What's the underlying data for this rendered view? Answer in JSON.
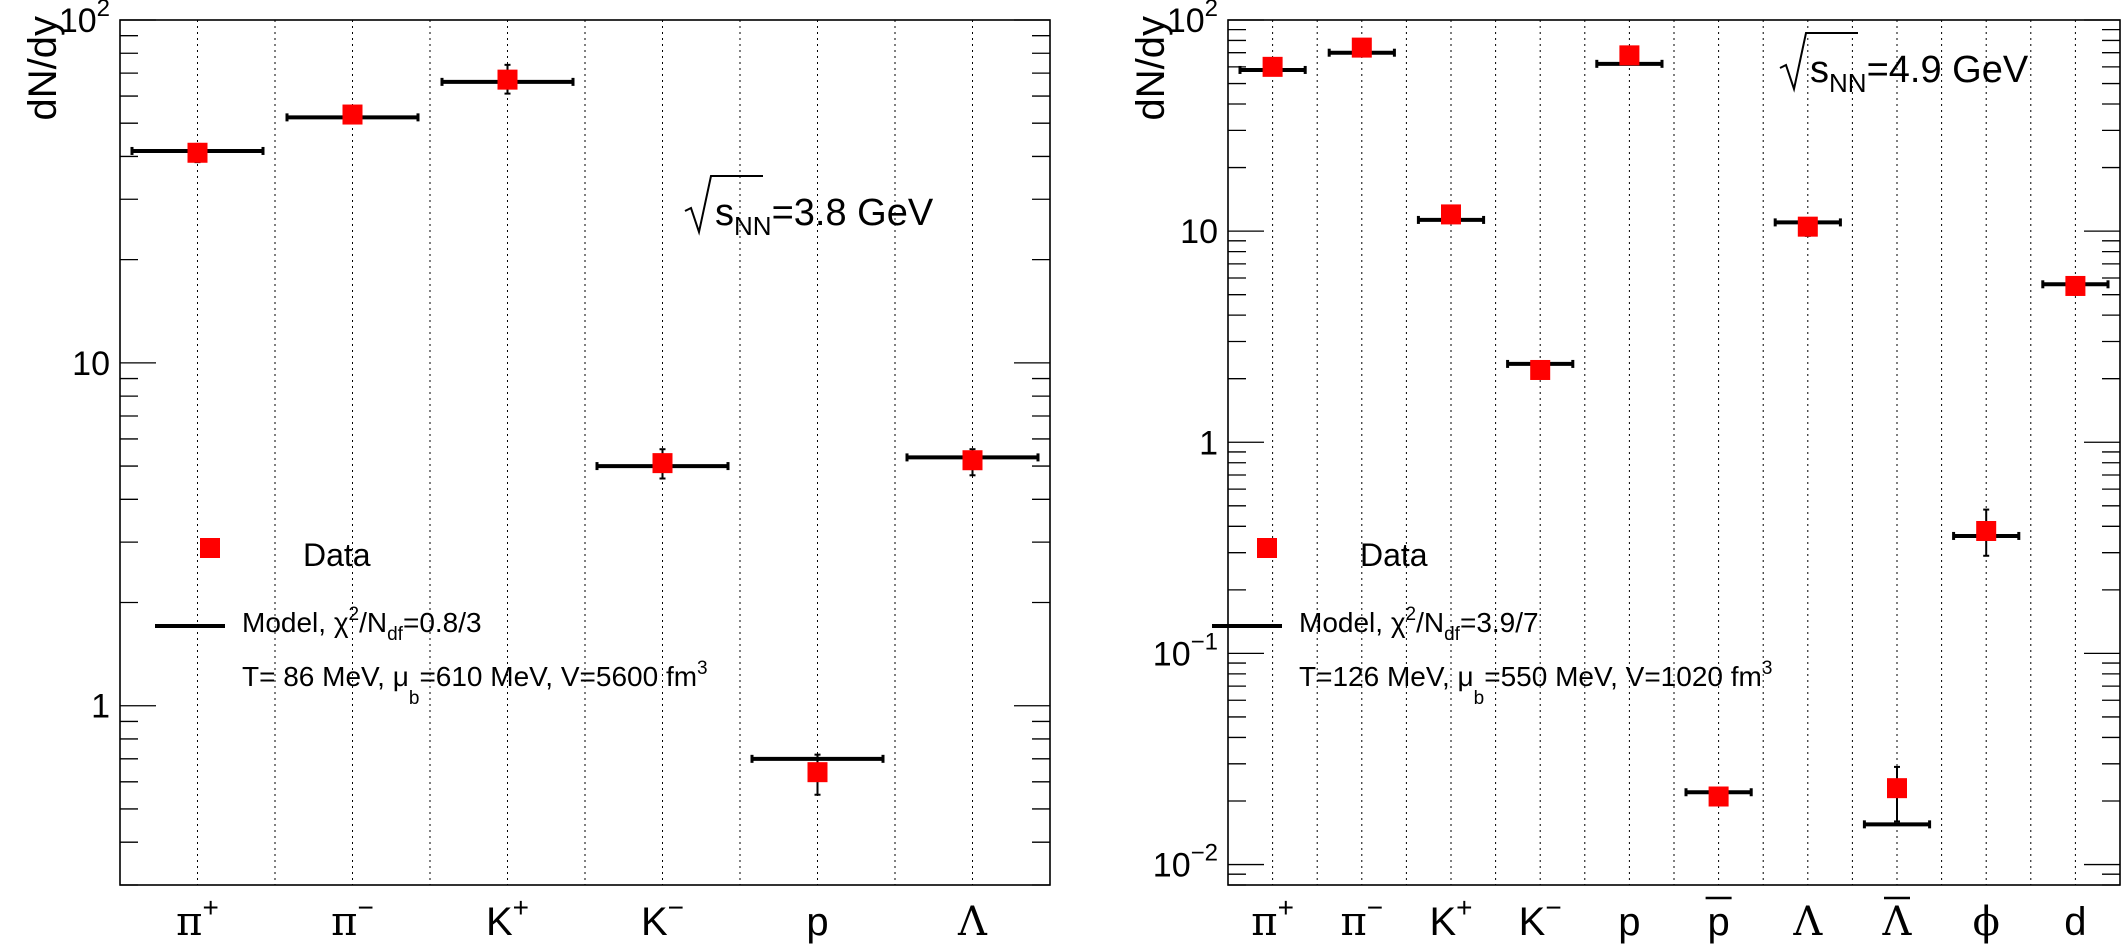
{
  "chart_data": [
    {
      "type": "scatter",
      "scale": "log",
      "ylabel": "dN/dy",
      "ylim": [
        0.3,
        100
      ],
      "y_ticks": [
        {
          "value": 1,
          "label": "1",
          "exp": ""
        },
        {
          "value": 10,
          "label": "10",
          "exp": ""
        },
        {
          "value": 100,
          "label": "10",
          "exp": "2"
        }
      ],
      "categories": [
        {
          "base": "π",
          "sup": "+",
          "bar": false
        },
        {
          "base": "π",
          "sup": "−",
          "bar": false
        },
        {
          "base": "K",
          "sup": "+",
          "bar": false
        },
        {
          "base": "K",
          "sup": "−",
          "bar": false
        },
        {
          "base": "p",
          "sup": "",
          "bar": false
        },
        {
          "base": "Λ",
          "sup": "",
          "bar": false
        }
      ],
      "series": [
        {
          "name": "Data",
          "values": [
            41,
            53,
            67,
            5.1,
            0.64,
            5.2
          ],
          "err_low": [
            2.5,
            3,
            6,
            0.5,
            0.09,
            0.5
          ],
          "err_high": [
            2.5,
            3,
            7,
            0.5,
            0.08,
            0.4
          ]
        },
        {
          "name": "Model",
          "values": [
            41.5,
            52,
            66,
            5.0,
            0.7,
            5.3
          ]
        }
      ],
      "energy": {
        "pre": "s",
        "sub": "NN",
        "post": "=3.8 GeV"
      },
      "legend": {
        "data_label": "Data",
        "model_pre": "Model, χ",
        "model_sup": "2",
        "model_mid": "/N",
        "model_sub": "df",
        "model_post": "=0.8/3",
        "params_pre": "T= 86 MeV, μ",
        "params_sub": "b",
        "params_mid": "=610 MeV, V=5600 fm",
        "params_sup": "3"
      }
    },
    {
      "type": "scatter",
      "scale": "log",
      "ylabel": "dN/dy",
      "ylim": [
        0.008,
        100
      ],
      "y_ticks": [
        {
          "value": 0.01,
          "label": "10",
          "exp": "−2"
        },
        {
          "value": 0.1,
          "label": "10",
          "exp": "−1"
        },
        {
          "value": 1,
          "label": "1",
          "exp": ""
        },
        {
          "value": 10,
          "label": "10",
          "exp": ""
        },
        {
          "value": 100,
          "label": "10",
          "exp": "2"
        }
      ],
      "categories": [
        {
          "base": "π",
          "sup": "+",
          "bar": false
        },
        {
          "base": "π",
          "sup": "−",
          "bar": false
        },
        {
          "base": "K",
          "sup": "+",
          "bar": false
        },
        {
          "base": "K",
          "sup": "−",
          "bar": false
        },
        {
          "base": "p",
          "sup": "",
          "bar": false
        },
        {
          "base": "p",
          "sup": "",
          "bar": true
        },
        {
          "base": "Λ",
          "sup": "",
          "bar": false
        },
        {
          "base": "Λ",
          "sup": "",
          "bar": true
        },
        {
          "base": "ϕ",
          "sup": "",
          "bar": false
        },
        {
          "base": "d",
          "sup": "",
          "bar": false
        }
      ],
      "series": [
        {
          "name": "Data",
          "values": [
            60,
            74,
            12,
            2.2,
            68,
            0.021,
            10.5,
            0.023,
            0.38,
            5.5
          ],
          "err_low": [
            5,
            6,
            1,
            0.15,
            5,
            0.0015,
            1,
            0.007,
            0.09,
            0.5
          ],
          "err_high": [
            5,
            6,
            1,
            0.15,
            5,
            0.0015,
            1,
            0.006,
            0.1,
            0.5
          ]
        },
        {
          "name": "Model",
          "values": [
            58,
            70,
            11.3,
            2.35,
            62,
            0.022,
            11.0,
            0.0155,
            0.36,
            5.6
          ]
        }
      ],
      "energy": {
        "pre": "s",
        "sub": "NN",
        "post": "=4.9 GeV"
      },
      "legend": {
        "data_label": "Data",
        "model_pre": "Model, χ",
        "model_sup": "2",
        "model_mid": "/N",
        "model_sub": "df",
        "model_post": "=3.9/7",
        "params_pre": "T=126 MeV, μ",
        "params_sub": "b",
        "params_mid": "=550 MeV, V=1020 fm",
        "params_sup": "3"
      }
    }
  ]
}
